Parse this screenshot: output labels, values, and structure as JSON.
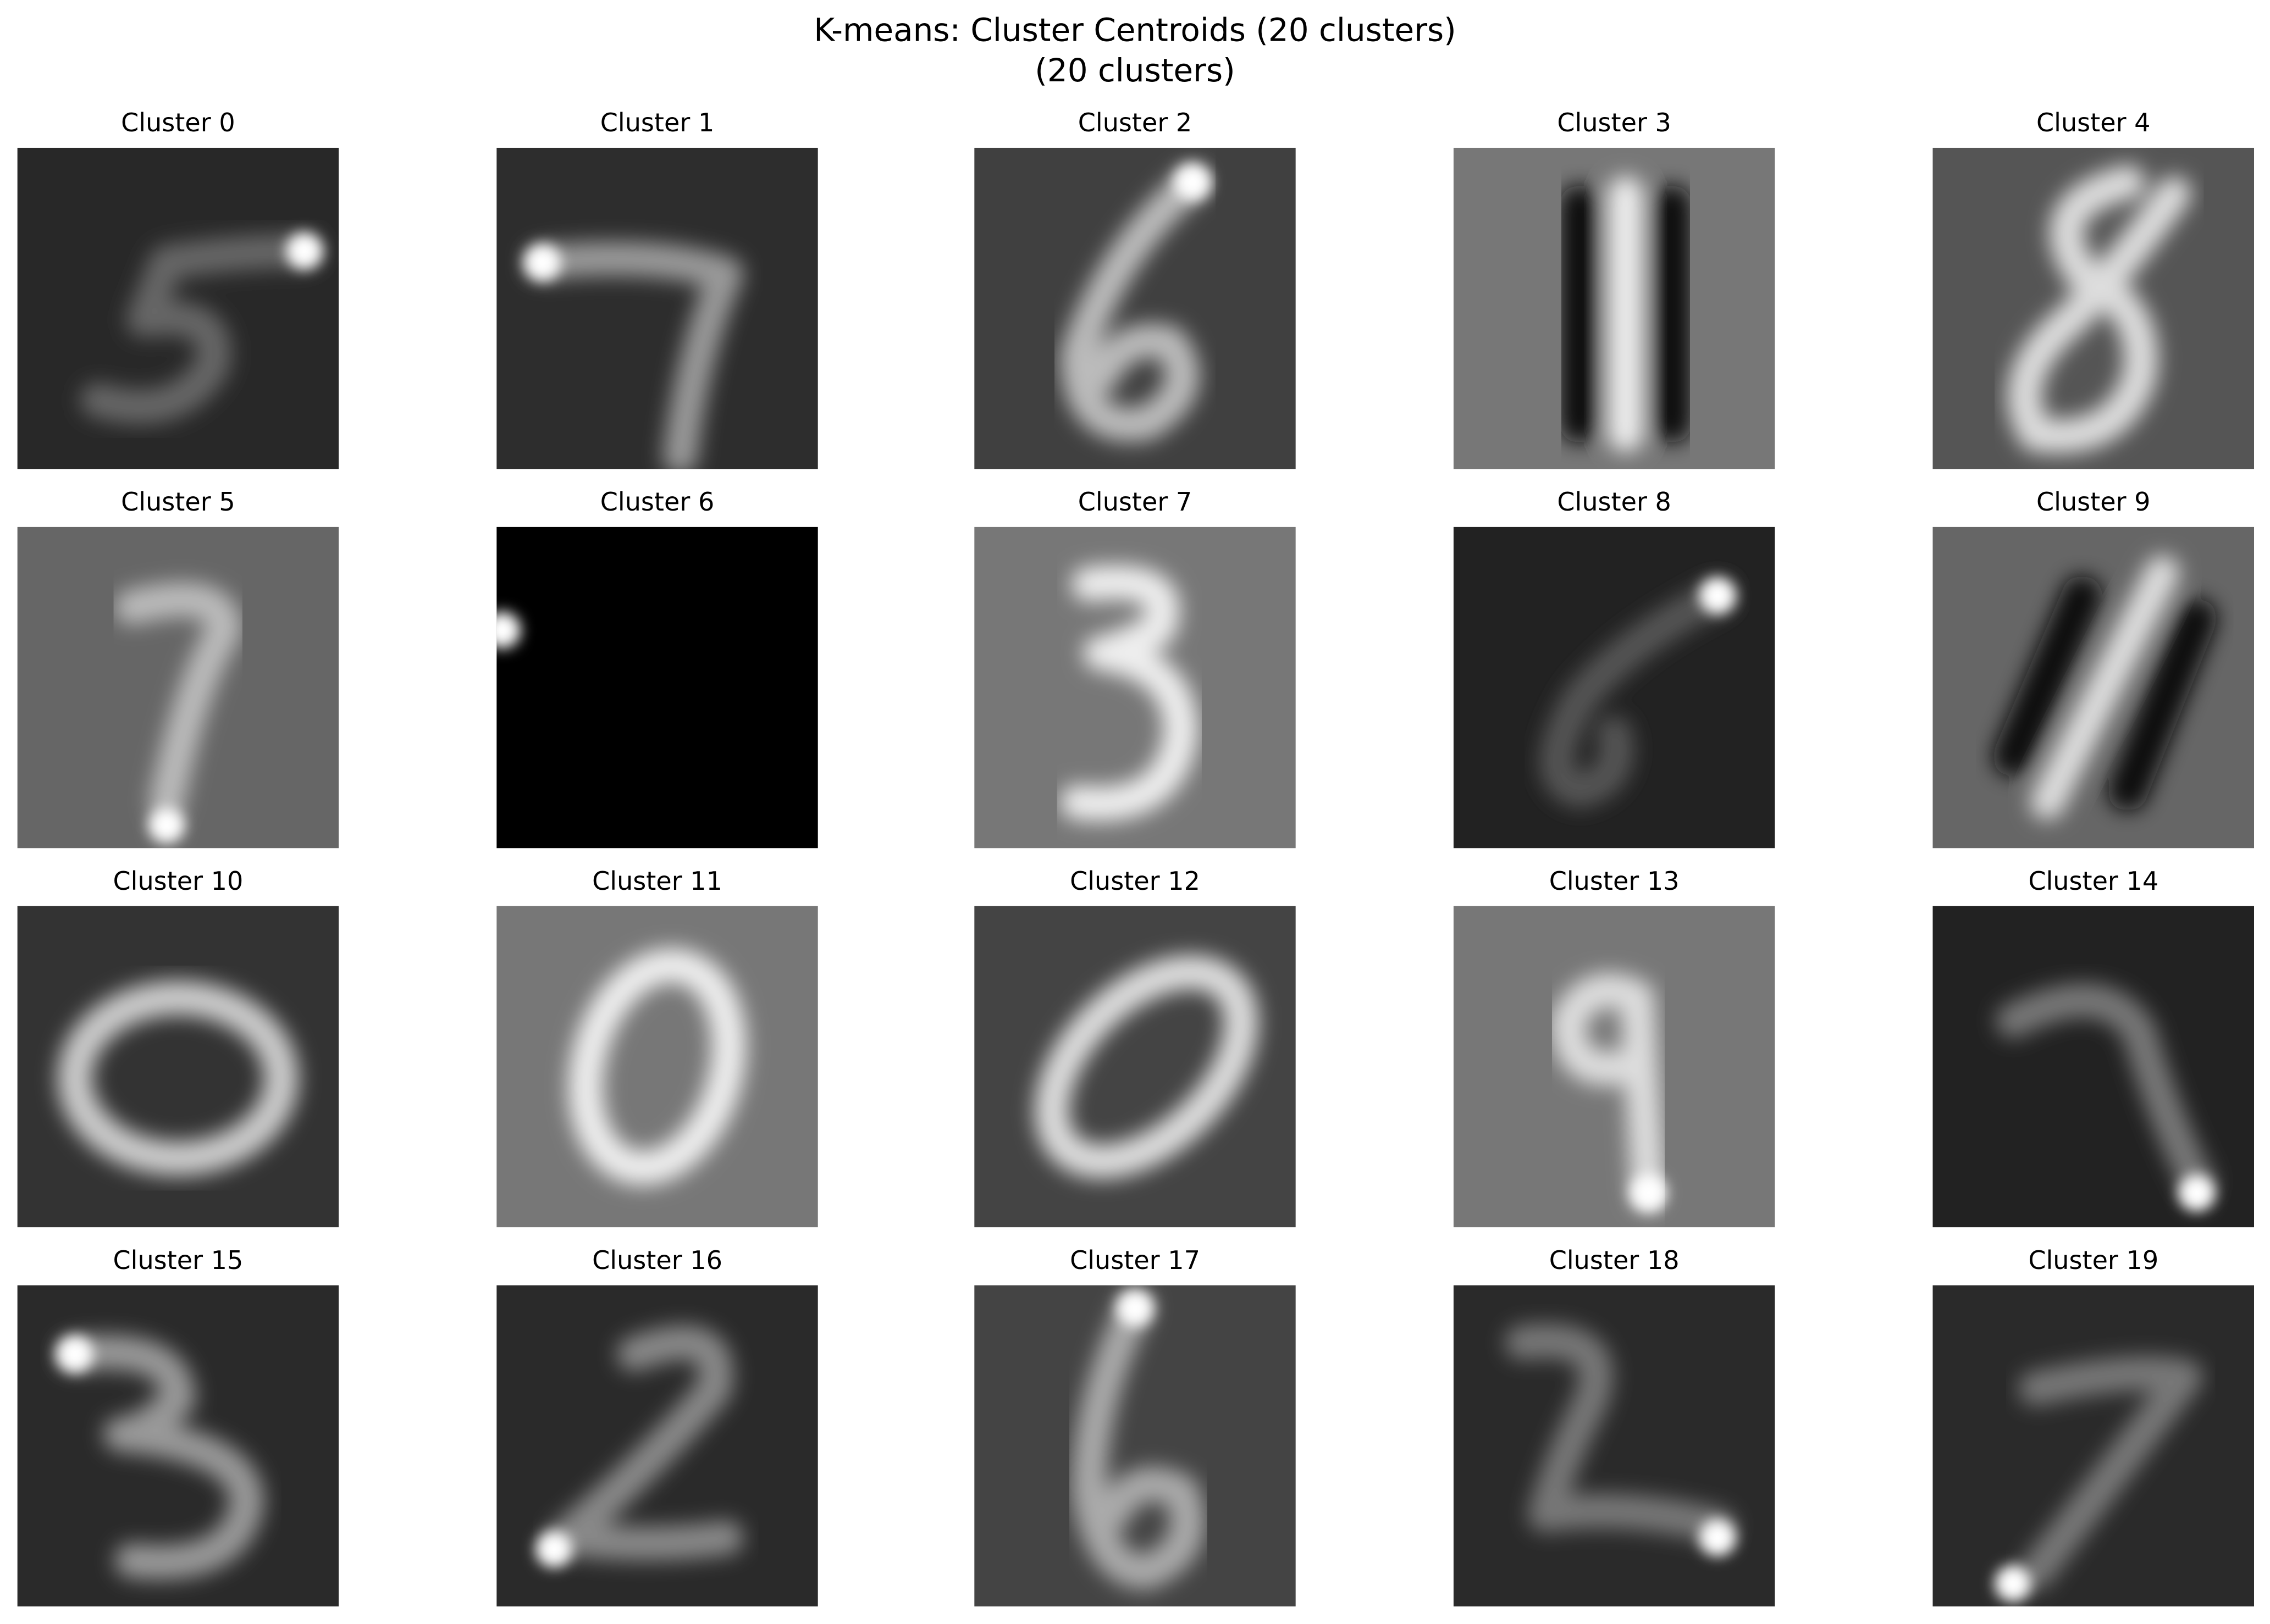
{
  "header": {
    "title": "K-means: Cluster Centroids (20 clusters)",
    "subtitle": "(20 clusters)"
  },
  "panels": [
    {
      "title": "Cluster 0"
    },
    {
      "title": "Cluster 1"
    },
    {
      "title": "Cluster 2"
    },
    {
      "title": "Cluster 3"
    },
    {
      "title": "Cluster 4"
    },
    {
      "title": "Cluster 5"
    },
    {
      "title": "Cluster 6"
    },
    {
      "title": "Cluster 7"
    },
    {
      "title": "Cluster 8"
    },
    {
      "title": "Cluster 9"
    },
    {
      "title": "Cluster 10"
    },
    {
      "title": "Cluster 11"
    },
    {
      "title": "Cluster 12"
    },
    {
      "title": "Cluster 13"
    },
    {
      "title": "Cluster 14"
    },
    {
      "title": "Cluster 15"
    },
    {
      "title": "Cluster 16"
    },
    {
      "title": "Cluster 17"
    },
    {
      "title": "Cluster 18"
    },
    {
      "title": "Cluster 19"
    }
  ]
}
